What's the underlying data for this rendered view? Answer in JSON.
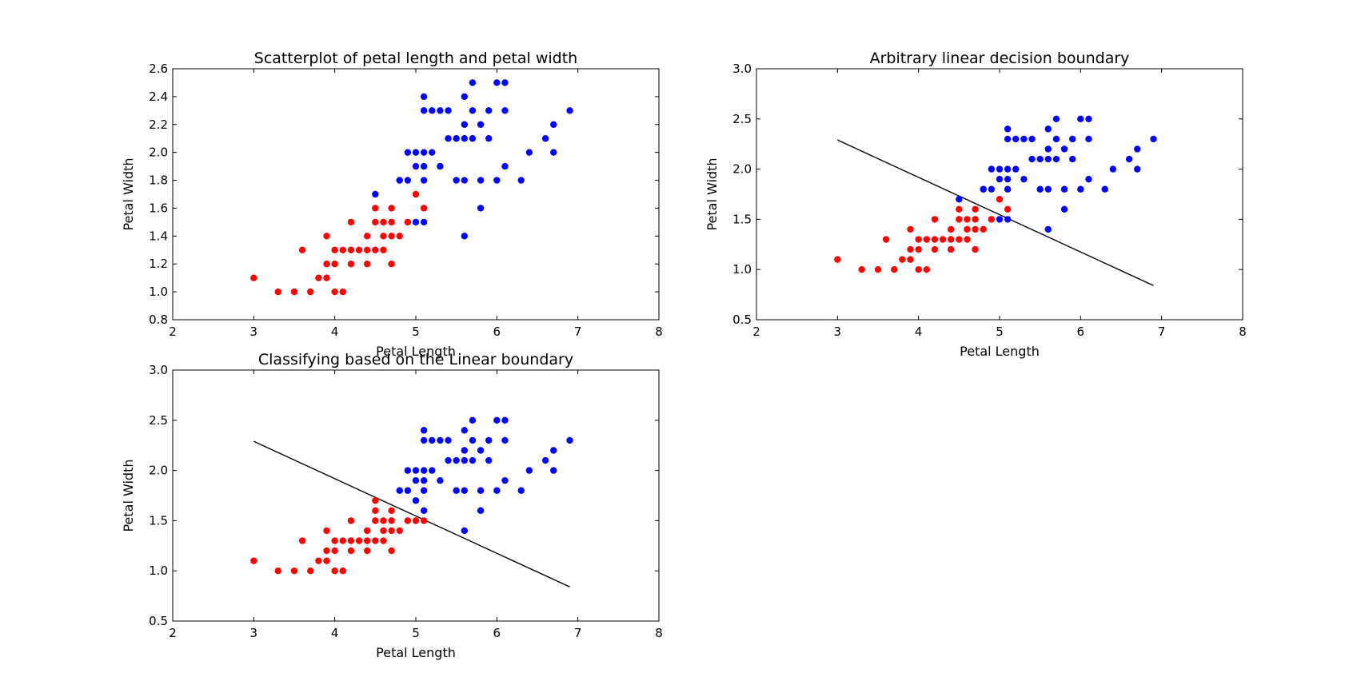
{
  "figure": {
    "background": "#ffffff"
  },
  "colors": {
    "class_a": "#ff0000",
    "class_b": "#0000ff",
    "boundary": "#000000"
  },
  "chart_data": [
    {
      "type": "scatter",
      "title": "Scatterplot of petal length and petal width",
      "xlabel": "Petal Length",
      "ylabel": "Petal Width",
      "xlim": [
        2,
        8
      ],
      "ylim": [
        0.8,
        2.6
      ],
      "xticks": [
        2,
        3,
        4,
        5,
        6,
        7,
        8
      ],
      "yticks": [
        0.8,
        1.0,
        1.2,
        1.4,
        1.6,
        1.8,
        2.0,
        2.2,
        2.4,
        2.6
      ],
      "tick_decimals": 1,
      "grid": false,
      "series": [
        {
          "color": "#ff0000",
          "points": [
            [
              3.0,
              1.1
            ],
            [
              3.3,
              1.0
            ],
            [
              3.5,
              1.0
            ],
            [
              3.6,
              1.3
            ],
            [
              3.7,
              1.0
            ],
            [
              3.8,
              1.1
            ],
            [
              3.9,
              1.1
            ],
            [
              3.9,
              1.2
            ],
            [
              3.9,
              1.4
            ],
            [
              4.0,
              1.0
            ],
            [
              4.0,
              1.2
            ],
            [
              4.0,
              1.3
            ],
            [
              4.1,
              1.0
            ],
            [
              4.1,
              1.3
            ],
            [
              4.2,
              1.2
            ],
            [
              4.2,
              1.3
            ],
            [
              4.2,
              1.5
            ],
            [
              4.3,
              1.3
            ],
            [
              4.4,
              1.2
            ],
            [
              4.4,
              1.3
            ],
            [
              4.4,
              1.4
            ],
            [
              4.5,
              1.3
            ],
            [
              4.5,
              1.5
            ],
            [
              4.5,
              1.6
            ],
            [
              4.6,
              1.3
            ],
            [
              4.6,
              1.4
            ],
            [
              4.6,
              1.5
            ],
            [
              4.7,
              1.2
            ],
            [
              4.7,
              1.4
            ],
            [
              4.7,
              1.5
            ],
            [
              4.7,
              1.6
            ],
            [
              4.8,
              1.4
            ],
            [
              4.8,
              1.8
            ],
            [
              4.9,
              1.5
            ],
            [
              5.0,
              1.7
            ],
            [
              5.1,
              1.6
            ]
          ]
        },
        {
          "color": "#0000ff",
          "points": [
            [
              4.5,
              1.7
            ],
            [
              4.8,
              1.8
            ],
            [
              4.9,
              1.8
            ],
            [
              4.9,
              2.0
            ],
            [
              5.0,
              1.5
            ],
            [
              5.0,
              1.9
            ],
            [
              5.0,
              2.0
            ],
            [
              5.1,
              1.5
            ],
            [
              5.1,
              1.8
            ],
            [
              5.1,
              1.9
            ],
            [
              5.1,
              2.0
            ],
            [
              5.1,
              2.3
            ],
            [
              5.1,
              2.4
            ],
            [
              5.2,
              2.0
            ],
            [
              5.2,
              2.3
            ],
            [
              5.3,
              1.9
            ],
            [
              5.3,
              2.3
            ],
            [
              5.4,
              2.1
            ],
            [
              5.4,
              2.3
            ],
            [
              5.5,
              1.8
            ],
            [
              5.5,
              2.1
            ],
            [
              5.6,
              1.4
            ],
            [
              5.6,
              1.8
            ],
            [
              5.6,
              2.1
            ],
            [
              5.6,
              2.2
            ],
            [
              5.6,
              2.4
            ],
            [
              5.7,
              2.1
            ],
            [
              5.7,
              2.3
            ],
            [
              5.7,
              2.5
            ],
            [
              5.8,
              1.6
            ],
            [
              5.8,
              1.8
            ],
            [
              5.8,
              2.2
            ],
            [
              5.9,
              2.1
            ],
            [
              5.9,
              2.3
            ],
            [
              6.0,
              1.8
            ],
            [
              6.0,
              2.5
            ],
            [
              6.1,
              1.9
            ],
            [
              6.1,
              2.3
            ],
            [
              6.1,
              2.5
            ],
            [
              6.3,
              1.8
            ],
            [
              6.4,
              2.0
            ],
            [
              6.6,
              2.1
            ],
            [
              6.7,
              2.0
            ],
            [
              6.7,
              2.2
            ],
            [
              6.9,
              2.3
            ]
          ]
        }
      ],
      "boundary": null
    },
    {
      "type": "scatter",
      "title": "Arbitrary linear decision boundary",
      "xlabel": "Petal Length",
      "ylabel": "Petal Width",
      "xlim": [
        2,
        8
      ],
      "ylim": [
        0.5,
        3.0
      ],
      "xticks": [
        2,
        3,
        4,
        5,
        6,
        7,
        8
      ],
      "yticks": [
        0.5,
        1.0,
        1.5,
        2.0,
        2.5,
        3.0
      ],
      "tick_decimals": 1,
      "grid": false,
      "series": [
        {
          "color": "#ff0000",
          "points": [
            [
              3.0,
              1.1
            ],
            [
              3.3,
              1.0
            ],
            [
              3.5,
              1.0
            ],
            [
              3.6,
              1.3
            ],
            [
              3.7,
              1.0
            ],
            [
              3.8,
              1.1
            ],
            [
              3.9,
              1.1
            ],
            [
              3.9,
              1.2
            ],
            [
              3.9,
              1.4
            ],
            [
              4.0,
              1.0
            ],
            [
              4.0,
              1.2
            ],
            [
              4.0,
              1.3
            ],
            [
              4.1,
              1.0
            ],
            [
              4.1,
              1.3
            ],
            [
              4.2,
              1.2
            ],
            [
              4.2,
              1.3
            ],
            [
              4.2,
              1.5
            ],
            [
              4.3,
              1.3
            ],
            [
              4.4,
              1.2
            ],
            [
              4.4,
              1.3
            ],
            [
              4.4,
              1.4
            ],
            [
              4.5,
              1.3
            ],
            [
              4.5,
              1.5
            ],
            [
              4.5,
              1.6
            ],
            [
              4.6,
              1.3
            ],
            [
              4.6,
              1.4
            ],
            [
              4.6,
              1.5
            ],
            [
              4.7,
              1.2
            ],
            [
              4.7,
              1.4
            ],
            [
              4.7,
              1.5
            ],
            [
              4.7,
              1.6
            ],
            [
              4.8,
              1.4
            ],
            [
              4.8,
              1.8
            ],
            [
              4.9,
              1.5
            ],
            [
              5.0,
              1.7
            ],
            [
              5.1,
              1.6
            ]
          ]
        },
        {
          "color": "#0000ff",
          "points": [
            [
              4.5,
              1.7
            ],
            [
              4.8,
              1.8
            ],
            [
              4.9,
              1.8
            ],
            [
              4.9,
              2.0
            ],
            [
              5.0,
              1.5
            ],
            [
              5.0,
              1.9
            ],
            [
              5.0,
              2.0
            ],
            [
              5.1,
              1.5
            ],
            [
              5.1,
              1.8
            ],
            [
              5.1,
              1.9
            ],
            [
              5.1,
              2.0
            ],
            [
              5.1,
              2.3
            ],
            [
              5.1,
              2.4
            ],
            [
              5.2,
              2.0
            ],
            [
              5.2,
              2.3
            ],
            [
              5.3,
              1.9
            ],
            [
              5.3,
              2.3
            ],
            [
              5.4,
              2.1
            ],
            [
              5.4,
              2.3
            ],
            [
              5.5,
              1.8
            ],
            [
              5.5,
              2.1
            ],
            [
              5.6,
              1.4
            ],
            [
              5.6,
              1.8
            ],
            [
              5.6,
              2.1
            ],
            [
              5.6,
              2.2
            ],
            [
              5.6,
              2.4
            ],
            [
              5.7,
              2.1
            ],
            [
              5.7,
              2.3
            ],
            [
              5.7,
              2.5
            ],
            [
              5.8,
              1.6
            ],
            [
              5.8,
              1.8
            ],
            [
              5.8,
              2.2
            ],
            [
              5.9,
              2.1
            ],
            [
              5.9,
              2.3
            ],
            [
              6.0,
              1.8
            ],
            [
              6.0,
              2.5
            ],
            [
              6.1,
              1.9
            ],
            [
              6.1,
              2.3
            ],
            [
              6.1,
              2.5
            ],
            [
              6.3,
              1.8
            ],
            [
              6.4,
              2.0
            ],
            [
              6.6,
              2.1
            ],
            [
              6.7,
              2.0
            ],
            [
              6.7,
              2.2
            ],
            [
              6.9,
              2.3
            ]
          ]
        }
      ],
      "boundary": {
        "x": [
          3.0,
          6.9
        ],
        "y": [
          2.29,
          0.84
        ]
      }
    },
    {
      "type": "scatter",
      "title": "Classifying based on the Linear boundary",
      "xlabel": "Petal Length",
      "ylabel": "Petal Width",
      "xlim": [
        2,
        8
      ],
      "ylim": [
        0.5,
        3.0
      ],
      "xticks": [
        2,
        3,
        4,
        5,
        6,
        7,
        8
      ],
      "yticks": [
        0.5,
        1.0,
        1.5,
        2.0,
        2.5,
        3.0
      ],
      "tick_decimals": 1,
      "grid": false,
      "series": [
        {
          "color": "#ff0000",
          "points": [
            [
              3.0,
              1.1
            ],
            [
              3.3,
              1.0
            ],
            [
              3.5,
              1.0
            ],
            [
              3.6,
              1.3
            ],
            [
              3.7,
              1.0
            ],
            [
              3.8,
              1.1
            ],
            [
              3.9,
              1.1
            ],
            [
              3.9,
              1.2
            ],
            [
              3.9,
              1.4
            ],
            [
              4.0,
              1.0
            ],
            [
              4.0,
              1.2
            ],
            [
              4.0,
              1.3
            ],
            [
              4.1,
              1.0
            ],
            [
              4.1,
              1.3
            ],
            [
              4.2,
              1.2
            ],
            [
              4.2,
              1.3
            ],
            [
              4.2,
              1.5
            ],
            [
              4.3,
              1.3
            ],
            [
              4.4,
              1.2
            ],
            [
              4.4,
              1.3
            ],
            [
              4.4,
              1.4
            ],
            [
              4.5,
              1.3
            ],
            [
              4.5,
              1.5
            ],
            [
              4.5,
              1.6
            ],
            [
              4.5,
              1.7
            ],
            [
              4.6,
              1.3
            ],
            [
              4.6,
              1.4
            ],
            [
              4.6,
              1.5
            ],
            [
              4.7,
              1.2
            ],
            [
              4.7,
              1.4
            ],
            [
              4.7,
              1.5
            ],
            [
              4.7,
              1.6
            ],
            [
              4.8,
              1.4
            ],
            [
              4.9,
              1.5
            ],
            [
              5.0,
              1.5
            ],
            [
              5.1,
              1.5
            ]
          ]
        },
        {
          "color": "#0000ff",
          "points": [
            [
              4.8,
              1.8
            ],
            [
              4.9,
              1.8
            ],
            [
              4.9,
              2.0
            ],
            [
              5.0,
              1.7
            ],
            [
              5.0,
              1.9
            ],
            [
              5.0,
              2.0
            ],
            [
              5.1,
              1.6
            ],
            [
              5.1,
              1.8
            ],
            [
              5.1,
              1.9
            ],
            [
              5.1,
              2.0
            ],
            [
              5.1,
              2.3
            ],
            [
              5.1,
              2.4
            ],
            [
              5.2,
              2.0
            ],
            [
              5.2,
              2.3
            ],
            [
              5.3,
              1.9
            ],
            [
              5.3,
              2.3
            ],
            [
              5.4,
              2.1
            ],
            [
              5.4,
              2.3
            ],
            [
              5.5,
              1.8
            ],
            [
              5.5,
              2.1
            ],
            [
              5.6,
              1.4
            ],
            [
              5.6,
              1.8
            ],
            [
              5.6,
              2.1
            ],
            [
              5.6,
              2.2
            ],
            [
              5.6,
              2.4
            ],
            [
              5.7,
              2.1
            ],
            [
              5.7,
              2.3
            ],
            [
              5.7,
              2.5
            ],
            [
              5.8,
              1.6
            ],
            [
              5.8,
              1.8
            ],
            [
              5.8,
              2.2
            ],
            [
              5.9,
              2.1
            ],
            [
              5.9,
              2.3
            ],
            [
              6.0,
              1.8
            ],
            [
              6.0,
              2.5
            ],
            [
              6.1,
              1.9
            ],
            [
              6.1,
              2.3
            ],
            [
              6.1,
              2.5
            ],
            [
              6.3,
              1.8
            ],
            [
              6.4,
              2.0
            ],
            [
              6.6,
              2.1
            ],
            [
              6.7,
              2.0
            ],
            [
              6.7,
              2.2
            ],
            [
              6.9,
              2.3
            ]
          ]
        }
      ],
      "boundary": {
        "x": [
          3.0,
          6.9
        ],
        "y": [
          2.29,
          0.84
        ]
      }
    }
  ]
}
